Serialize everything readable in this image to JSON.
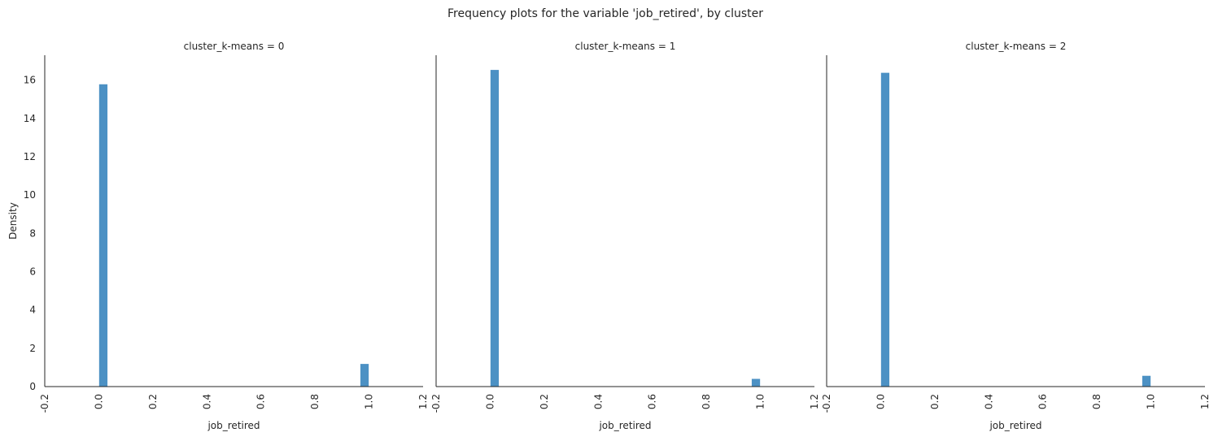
{
  "chart_data": {
    "type": "bar",
    "title": "Frequency plots for the variable 'job_retired', by cluster",
    "xlabel": "job_retired",
    "ylabel": "Density",
    "xlim": [
      -0.2,
      1.2
    ],
    "ylim": [
      0,
      17.3
    ],
    "xticks": [
      "-0.2",
      "0.0",
      "0.2",
      "0.4",
      "0.6",
      "0.8",
      "1.0",
      "1.2"
    ],
    "yticks": [
      "0",
      "2",
      "4",
      "6",
      "8",
      "10",
      "12",
      "14",
      "16"
    ],
    "bin_width": 0.0333,
    "bar_color": "#4c91c4",
    "panels": [
      {
        "title": "cluster_k-means = 0",
        "bins": [
          {
            "x": 0.0,
            "density": 15.8
          },
          {
            "x": 0.9667,
            "density": 1.2
          }
        ]
      },
      {
        "title": "cluster_k-means = 1",
        "bins": [
          {
            "x": 0.0,
            "density": 16.55
          },
          {
            "x": 0.9667,
            "density": 0.42
          }
        ]
      },
      {
        "title": "cluster_k-means = 2",
        "bins": [
          {
            "x": 0.0,
            "density": 16.4
          },
          {
            "x": 0.9667,
            "density": 0.58
          }
        ]
      }
    ]
  }
}
